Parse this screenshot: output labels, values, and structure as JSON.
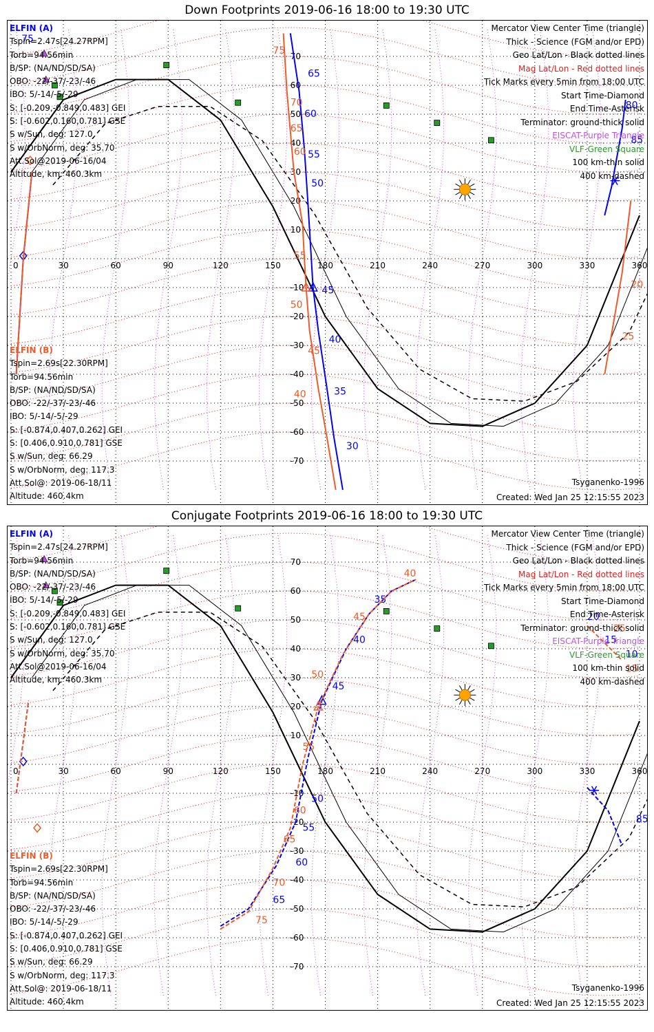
{
  "colors": {
    "blue": "#0000ff",
    "orange": "#f05a28",
    "red": "#e02020",
    "purple": "#c050e0",
    "green": "#2a9a2a",
    "black": "#000000",
    "sun": "#ffa500"
  },
  "panels": [
    {
      "title": "Down Footprints 2019-06-16 18:00 to 19:30 UTC",
      "a": {
        "label": "ELFIN (A)",
        "lines": [
          "Tspin=2.47s[24.27RPM]",
          "Torb=94.56min",
          "B/SP: (NA/ND/SD/SA)",
          "OBO: -22/-37/-23/-46",
          "IBO: 5/-14/-5/-29",
          "S: [-0.209,-0.849,0.483] GEI",
          "S: [-0.602,0.160,0.781] GSE",
          "S w/Sun, deg: 127.0",
          "S w/OrbNorm, deg: 35.70",
          "Att.Sol@2019-06-16/04",
          "Altitude, km: 460.3km"
        ]
      },
      "b": {
        "label": "ELFIN (B)",
        "lines": [
          "Tspin=2.69s[22.30RPM]",
          "Torb=94.56min",
          "B/SP: (NA/ND/SD/SA)",
          "OBO: -22/-37/-23/-46",
          "IBO: 5/-14/-5/-29",
          "S: [-0.874,0.407,0.262] GEI",
          "S: [0.406,0.910,0.781] GSE",
          "S w/Sun, deg: 66.29",
          "S w/OrbNorm, deg: 117.3",
          "Att.Sol@: 2019-06-18/11",
          "Altitude: 460.4km"
        ]
      },
      "model": "Tsyganenko-1996",
      "created": "Created: Wed Jan 25 12:15:55 2023"
    },
    {
      "title": "Conjugate Footprints 2019-06-16 18:00 to 19:30 UTC",
      "a": {
        "label": "ELFIN (A)",
        "lines": [
          "Tspin=2.47s[24.27RPM]",
          "Torb=94.56min",
          "B/SP: (NA/ND/SD/SA)",
          "OBO: -22/-37/-23/-46",
          "IBO: 5/-14/-5/-29",
          "S: [-0.209,-0.849,0.483] GEI",
          "S: [-0.602,0.160,0.781] GSE",
          "S w/Sun, deg: 127.0",
          "S w/OrbNorm, deg: 35.70",
          "Att.Sol@2019-06-16/04",
          "Altitude, km: 460.3km"
        ]
      },
      "b": {
        "label": "ELFIN (B)",
        "lines": [
          "Tspin=2.69s[22.30RPM]",
          "Torb=94.56min",
          "B/SP: (NA/ND/SD/SA)",
          "OBO: -22/-37/-23/-46",
          "IBO: 5/-14/-5/-29",
          "S: [-0.874,0.407,0.262] GEI",
          "S: [0.406,0.910,0.781] GSE",
          "S w/Sun, deg: 66.29",
          "S w/OrbNorm, deg: 117.3",
          "Att.Sol@: 2019-06-18/11",
          "Altitude: 460.4km"
        ]
      },
      "model": "Tsyganenko-1996",
      "created": "Created: Wed Jan 25 12:15:55 2023"
    }
  ],
  "legend": [
    {
      "text": "Mercator View Center Time (triangle)",
      "color": "#000000"
    },
    {
      "text": "Thick - Science (FGM and/or EPD)",
      "color": "#000000"
    },
    {
      "text": "Geo Lat/Lon - Black dotted lines",
      "color": "#000000"
    },
    {
      "text": "Mag Lat/Lon - Red dotted lines",
      "color": "#e02020"
    },
    {
      "text": "Tick Marks every 5min from 18:00 UTC",
      "color": "#000000"
    },
    {
      "text": "Start Time-Diamond",
      "color": "#000000"
    },
    {
      "text": "End Time-Asterisk",
      "color": "#000000"
    },
    {
      "text": "Terminator: ground-thick solid",
      "color": "#000000"
    },
    {
      "text": "EISCAT-Purple Triangle",
      "color": "#c050e0"
    },
    {
      "text": "VLF-Green Square",
      "color": "#2a9a2a"
    },
    {
      "text": "100 km-thin solid",
      "color": "#000000"
    },
    {
      "text": "400 km-dashed",
      "color": "#000000"
    }
  ],
  "chart_data": [
    {
      "type": "line",
      "title": "Down Footprints 2019-06-16 18:00 to 19:30 UTC",
      "xlim": [
        0,
        360
      ],
      "ylim": [
        -80,
        78
      ],
      "x_ticks": [
        0,
        30,
        60,
        90,
        120,
        150,
        180,
        210,
        240,
        270,
        300,
        330,
        360
      ],
      "y_ticks": [
        70,
        60,
        50,
        40,
        30,
        20,
        10,
        -10,
        -20,
        -30,
        -40,
        -50,
        -60,
        -70
      ],
      "grid": true,
      "series": [
        {
          "name": "ELFIN (A)",
          "color": "#0000ff",
          "minute_labels": [
            75,
            65,
            60,
            55,
            50,
            45,
            40,
            35,
            30
          ],
          "points": [
            [
              160,
              78
            ],
            [
              165,
              58
            ],
            [
              168,
              38
            ],
            [
              170,
              20
            ],
            [
              172,
              0
            ],
            [
              173,
              -10
            ],
            [
              176,
              -25
            ],
            [
              181,
              -45
            ],
            [
              185,
              -62
            ],
            [
              190,
              -80
            ]
          ],
          "labels": [
            [
              6,
              75
            ],
            [
              170,
              63
            ],
            [
              168,
              49
            ],
            [
              170,
              35
            ],
            [
              172,
              25
            ],
            [
              178,
              -12
            ],
            [
              182,
              -29
            ],
            [
              185,
              -47
            ],
            [
              192,
              -66
            ]
          ],
          "start_marker": [
            7,
            1
          ],
          "end_marker": [
            346,
            27
          ],
          "start_points": [
            [
              3,
              -40
            ],
            [
              7,
              0
            ],
            [
              12,
              30
            ]
          ],
          "end_points": [
            [
              340,
              15
            ],
            [
              344,
              25
            ],
            [
              350,
              45
            ],
            [
              352,
              55
            ]
          ],
          "end_labels": [
            [
              355,
              40,
              "85"
            ],
            [
              352,
              52,
              "80"
            ]
          ]
        },
        {
          "name": "ELFIN (B)",
          "color": "#f05a28",
          "minute_labels": [
            75,
            70,
            65,
            60,
            55,
            50,
            45,
            40
          ],
          "points": [
            [
              156,
              78
            ],
            [
              158,
              58
            ],
            [
              162,
              30
            ],
            [
              167,
              12
            ],
            [
              168,
              0
            ],
            [
              169,
              -10
            ],
            [
              171,
              -25
            ],
            [
              176,
              -45
            ],
            [
              181,
              -62
            ],
            [
              186,
              -80
            ]
          ],
          "labels": [
            [
              150,
              71
            ],
            [
              160,
              53
            ],
            [
              160,
              44
            ],
            [
              162,
              36
            ],
            [
              162,
              0
            ],
            [
              160,
              -17
            ],
            [
              170,
              -33
            ],
            [
              162,
              -48
            ]
          ],
          "start_marker": [
            11,
            34
          ],
          "start_points": [
            [
              3,
              -40
            ],
            [
              7,
              0
            ],
            [
              12,
              30
            ]
          ],
          "end_points": [
            [
              340,
              -40
            ],
            [
              350,
              -5
            ],
            [
              355,
              20
            ]
          ],
          "end_labels": [
            [
              350,
              -28,
              "25"
            ],
            [
              355,
              -10,
              "20"
            ]
          ]
        }
      ],
      "terminator": [
        [
          0,
          30
        ],
        [
          30,
          55
        ],
        [
          60,
          62
        ],
        [
          90,
          62
        ],
        [
          120,
          48
        ],
        [
          150,
          18
        ],
        [
          180,
          -20
        ],
        [
          210,
          -45
        ],
        [
          240,
          -57
        ],
        [
          270,
          -58
        ],
        [
          300,
          -50
        ],
        [
          330,
          -30
        ],
        [
          360,
          15
        ]
      ],
      "markers": {
        "sun": [
          260,
          24
        ],
        "vlf": [
          [
            25,
            60
          ],
          [
            28,
            56
          ],
          [
            89,
            67
          ],
          [
            130,
            54
          ],
          [
            215,
            53
          ],
          [
            244,
            47
          ],
          [
            275,
            41
          ]
        ],
        "eiscat": [
          [
            19,
            71
          ],
          [
            20,
            62
          ]
        ]
      }
    },
    {
      "type": "line",
      "title": "Conjugate Footprints 2019-06-16 18:00 to 19:30 UTC",
      "xlim": [
        0,
        360
      ],
      "ylim": [
        -80,
        78
      ],
      "x_ticks": [
        0,
        30,
        60,
        90,
        120,
        150,
        180,
        210,
        240,
        270,
        300,
        330,
        360
      ],
      "y_ticks": [
        70,
        60,
        50,
        40,
        30,
        20,
        10,
        -10,
        -20,
        -30,
        -40,
        -50,
        -60,
        -70
      ],
      "grid": true,
      "series": [
        {
          "name": "ELFIN (A)",
          "color": "#0000ff",
          "minute_labels": [
            65,
            60,
            55,
            50,
            45,
            40,
            35
          ],
          "points": [
            [
              120,
              -56
            ],
            [
              136,
              -50
            ],
            [
              152,
              -35
            ],
            [
              163,
              -20
            ],
            [
              170,
              2
            ],
            [
              178,
              22
            ],
            [
              192,
              40
            ],
            [
              205,
              52
            ],
            [
              218,
              60
            ],
            [
              232,
              64
            ]
          ],
          "labels": [
            [
              150,
              -48
            ],
            [
              163,
              -35
            ],
            [
              167,
              -23
            ],
            [
              172,
              -13
            ],
            [
              184,
              26
            ],
            [
              196,
              42
            ],
            [
              208,
              56
            ]
          ],
          "start_marker": [
            7,
            1
          ],
          "end_marker": [
            334,
            -9
          ],
          "start_points": [
            [
              3,
              -10
            ],
            [
              7,
              8
            ],
            [
              10,
              22
            ]
          ],
          "end_points": [
            [
              330,
              -8
            ],
            [
              342,
              -16
            ],
            [
              350,
              -28
            ]
          ],
          "end_labels": [
            [
              358,
              -20,
              "85"
            ],
            [
              330,
              50,
              "20"
            ],
            [
              340,
              42,
              "15"
            ],
            [
              352,
              37,
              "10"
            ]
          ]
        },
        {
          "name": "ELFIN (B)",
          "color": "#f05a28",
          "minute_labels": [
            75,
            70,
            65,
            60,
            55,
            50,
            45,
            40
          ],
          "points": [
            [
              120,
              -57
            ],
            [
              136,
              -51
            ],
            [
              150,
              -36
            ],
            [
              160,
              -22
            ],
            [
              167,
              0
            ],
            [
              176,
              20
            ],
            [
              190,
              38
            ],
            [
              205,
              52
            ],
            [
              218,
              60
            ],
            [
              232,
              64
            ]
          ],
          "labels": [
            [
              140,
              -55
            ],
            [
              150,
              -42
            ],
            [
              156,
              -27
            ],
            [
              162,
              -17
            ],
            [
              167,
              5
            ],
            [
              172,
              30
            ],
            [
              196,
              50
            ],
            [
              225,
              65
            ]
          ],
          "start_marker": [
            15,
            -22
          ],
          "start_points": [
            [
              3,
              -10
            ],
            [
              7,
              8
            ],
            [
              10,
              22
            ]
          ],
          "end_points": [
            [
              330,
              48
            ],
            [
              340,
              42
            ],
            [
              350,
              36
            ]
          ],
          "end_labels": [
            [
              345,
              46,
              "25"
            ],
            [
              352,
              32,
              "15"
            ]
          ]
        }
      ],
      "terminator": [
        [
          0,
          30
        ],
        [
          30,
          55
        ],
        [
          60,
          62
        ],
        [
          90,
          62
        ],
        [
          120,
          48
        ],
        [
          150,
          18
        ],
        [
          180,
          -20
        ],
        [
          210,
          -45
        ],
        [
          240,
          -57
        ],
        [
          270,
          -58
        ],
        [
          300,
          -50
        ],
        [
          330,
          -30
        ],
        [
          360,
          15
        ]
      ],
      "markers": {
        "sun": [
          260,
          24
        ],
        "vlf": [
          [
            25,
            60
          ],
          [
            28,
            56
          ],
          [
            89,
            67
          ],
          [
            130,
            54
          ],
          [
            215,
            53
          ],
          [
            244,
            47
          ],
          [
            275,
            41
          ]
        ],
        "eiscat": [
          [
            19,
            71
          ],
          [
            20,
            62
          ]
        ]
      }
    }
  ]
}
